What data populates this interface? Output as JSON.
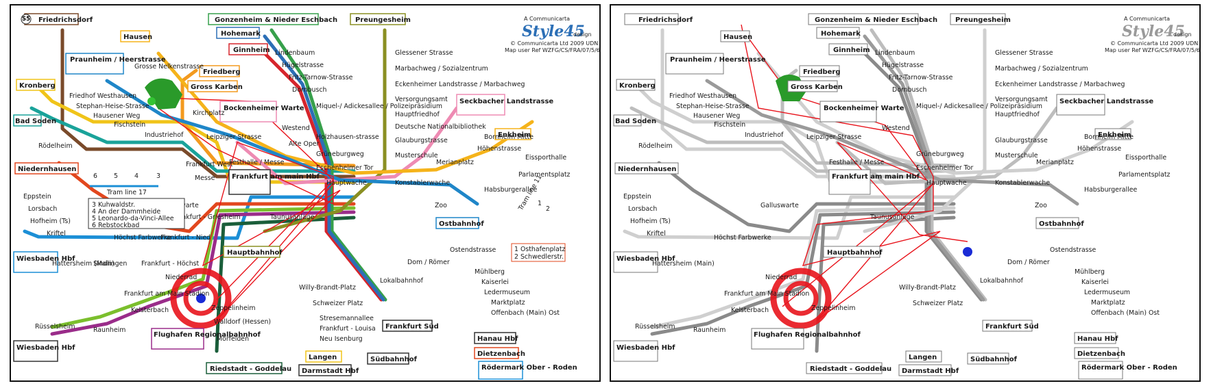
{
  "credits": {
    "brand_prefix": "A Communicarta",
    "logo_text": "Style45",
    "logo_suffix": "design",
    "copyright": "© Communicarta Ltd 2009 UDN 4c",
    "map_ref": "Map user Ref WZFG/CS/FRA/07/5/6"
  },
  "terminals": {
    "friedrichsdorf": {
      "line": "S5",
      "name": "Friedrichsdorf"
    },
    "gonzenheim": {
      "line": "U2",
      "name": "Gonzenheim & Nieder Eschbach"
    },
    "preungesheim": {
      "line": "U5",
      "name": "Preungesheim"
    },
    "hohemark": {
      "line": "U3",
      "name": "Hohemark"
    },
    "ginnheim": {
      "line": "U1",
      "name": "Ginnheim"
    },
    "hausen": {
      "line": "U7",
      "name": "Hausen"
    },
    "praunheim": {
      "line": "U6",
      "name": "Praunheim / Heerstrasse"
    },
    "kronberg": {
      "line": "S4",
      "name": "Kronberg"
    },
    "bad_soden": {
      "line": "S3",
      "name": "Bad Soden"
    },
    "friedberg": {
      "line": "S6",
      "name": "Friedberg"
    },
    "gross_karben": {
      "line": "S6",
      "name": "Gross Karben"
    },
    "bockenheimer": {
      "line": "U4",
      "name": "Bockenheimer Warte"
    },
    "seckbacher": {
      "line": "U4",
      "name": "Seckbacher Landstrasse"
    },
    "enkheim": {
      "line": "U7",
      "name": "Enkheim"
    },
    "niedernhausen": {
      "line": "S2",
      "name": "Niedernhausen"
    },
    "ostbahnhof": {
      "line": "U6",
      "name": "Ostbahnhof"
    },
    "wiesbaden": {
      "line": "S1",
      "name": "Wiesbaden Hbf"
    },
    "wiesbaden2": {
      "line": "S8",
      "line2": "S9",
      "name": "Wiesbaden Hbf"
    },
    "flughafen": {
      "line": "S9",
      "name": "Flughafen Regionalbahnhof"
    },
    "riedstadt": {
      "line": "S7",
      "name": "Riedstadt - Goddelau"
    },
    "langen": {
      "line": "S4",
      "name": "Langen"
    },
    "darmstadt": {
      "line": "S3",
      "line2": "S4",
      "name": "Darmstadt Hbf"
    },
    "suedbahnhof": {
      "line": "U1",
      "line2": "U2",
      "line3": "U3",
      "name": "Südbahnhof"
    },
    "frankfurt_sued": {
      "line": "S5",
      "line2": "S6",
      "name": "Frankfurt Süd"
    },
    "hanau": {
      "line": "S8",
      "line2": "S9",
      "name": "Hanau Hbf"
    },
    "dietzenbach": {
      "line": "S2",
      "name": "Dietzenbach"
    },
    "roedermark": {
      "line": "S1",
      "name": "Rödermark Ober - Roden"
    },
    "hauptbahnhof": {
      "line": "U5",
      "name": "Hauptbahnhof"
    },
    "frankfurt_hbf": {
      "line": "S7",
      "line2": "S9",
      "name": "Frankfurt am main Hbf"
    }
  },
  "stations": {
    "grosse_nelkenstrasse": "Grosse Nelkenstrasse",
    "friedhof_westhausen": "Friedhof Westhausen",
    "stephan_heise": "Stephan-Heise-Strasse",
    "hausener_weg": "Hausener Weg",
    "fischstein": "Fischstein",
    "industriehof": "Industriehof",
    "kirchplatz": "Kirchplatz",
    "leipziger": "Leipziger Strasse",
    "westend": "Westend",
    "alte_oper": "Alte Oper",
    "roedelheim": "Rödelheim",
    "frankfurt_west": "Frankfurt West",
    "messe": "Messe",
    "festhalle": "Festhalle / Messe",
    "galluswarte": "Galluswarte",
    "frankfurt_griesheim": "Frankfurt - Griesheim",
    "taunusanlage": "Taunusanlage",
    "eppstein": "Eppstein",
    "lorsbach": "Lorsbach",
    "hofheim": "Hofheim (Ts)",
    "kriftel": "Kriftel",
    "hoechst_farbwerke": "Höchst Farbwerke",
    "frankfurt_nied": "Frankfurt - Nied",
    "hattersheim": "Hattersheim (Main)",
    "sindlingen": "Sindlingen",
    "frankfurt_hoechst": "Frankfurt - Höchst",
    "niederrad": "Niederrad",
    "stadion": "Frankfurt am Main Stadion",
    "zeppelinheim": "Zeppelinheim",
    "kelsterbach": "Kelsterbach",
    "ruesselsheim": "Rüsselsheim",
    "raunheim": "Raunheim",
    "walldorf": "Walldorf (Hessen)",
    "moerfelden": "Mörfelden",
    "lindenbaum": "Lindenbaum",
    "huegelstrasse": "Hügelstrasse",
    "fritz_tarnow": "Fritz-Tarnow-Strasse",
    "dornbusch": "Dornbusch",
    "miquel": "Miquel-/ Adickesallee / Polizeipräsidium",
    "holzhausen": "Holzhausen-strasse",
    "grueneburgweg": "Grüneburgweg",
    "eschenheimer_tor": "Eschenheimer Tor",
    "hauptwache": "Hauptwache",
    "konstablerwache": "Konstablerwache",
    "glessener": "Glessener Strasse",
    "marbachweg": "Marbachweg / Sozialzentrum",
    "eckenheimer": "Eckenheimer Landstrasse / Marbachweg",
    "versorgungsamt": "Versorgungsamt",
    "hauptfriedhof": "Hauptfriedhof",
    "nationalbibliothek": "Deutsche Nationalbibliothek",
    "glauburgstrasse": "Glauburgstrasse",
    "musterschule": "Musterschule",
    "merianplatz": "Merianplatz",
    "hoehenstrasse": "Höhenstrasse",
    "bornheim_mitte": "Bornheim Mitte",
    "eissporthalle": "Eissporthalle",
    "parlamentsplatz": "Parlamentsplatz",
    "habsburgerallee": "Habsburgerallee",
    "zoo": "Zoo",
    "ostendstrasse": "Ostendstrasse",
    "dom_roemer": "Dom / Römer",
    "lokalbahnhof": "Lokalbahnhof",
    "willy_brandt": "Willy-Brandt-Platz",
    "schweizer_platz": "Schweizer Platz",
    "stresemannallee": "Stresemannallee",
    "frankfurt_louisa": "Frankfurt - Louisa",
    "neu_isenburg": "Neu Isenburg",
    "muehlberg": "Mühlberg",
    "kaiserlei": "Kaiserlei",
    "ledermuseum": "Ledermuseum",
    "marktplatz": "Marktplatz",
    "offenbach_ost": "Offenbach (Main) Ost"
  },
  "tram": {
    "label": "Tram line 17",
    "stops": [
      "6",
      "5",
      "4",
      "3"
    ],
    "legend": [
      "3  Kuhwaldstr.",
      "4  An der Dammheide",
      "5  Leonardo-da-Vinci-Allee",
      "6  Rebstockbad"
    ],
    "tram11_label": "Tram line 11",
    "tram11_stops": [
      "1",
      "2"
    ],
    "tram11_legend": [
      "1  Osthafenplatz",
      "2  Schwedlerstr."
    ]
  },
  "colors": {
    "background": "#ffffff",
    "scanpath": "#e8141c",
    "fixation": "#22aa33",
    "fixation_right": "#2222cc",
    "gray_light": "#cfcfcf",
    "gray_dark": "#8a8a8a"
  },
  "lines": [
    {
      "id": "S1",
      "color": "#1c8fd6"
    },
    {
      "id": "S2",
      "color": "#e2471e"
    },
    {
      "id": "S3",
      "color": "#1aa39a"
    },
    {
      "id": "S4",
      "color": "#f0c419"
    },
    {
      "id": "S5",
      "color": "#7a4a2a"
    },
    {
      "id": "S6",
      "color": "#f39a1f"
    },
    {
      "id": "S7",
      "color": "#1a5e3a"
    },
    {
      "id": "S8",
      "color": "#7bbf2d"
    },
    {
      "id": "S9",
      "color": "#9a2c8a"
    },
    {
      "id": "U1",
      "color": "#d6252c"
    },
    {
      "id": "U2",
      "color": "#37a04b"
    },
    {
      "id": "U3",
      "color": "#2c6fb6"
    },
    {
      "id": "U4",
      "color": "#ee8bb3"
    },
    {
      "id": "U5",
      "color": "#8a8f22"
    },
    {
      "id": "U6",
      "color": "#1f86c8"
    },
    {
      "id": "U7",
      "color": "#f5b31a"
    }
  ]
}
